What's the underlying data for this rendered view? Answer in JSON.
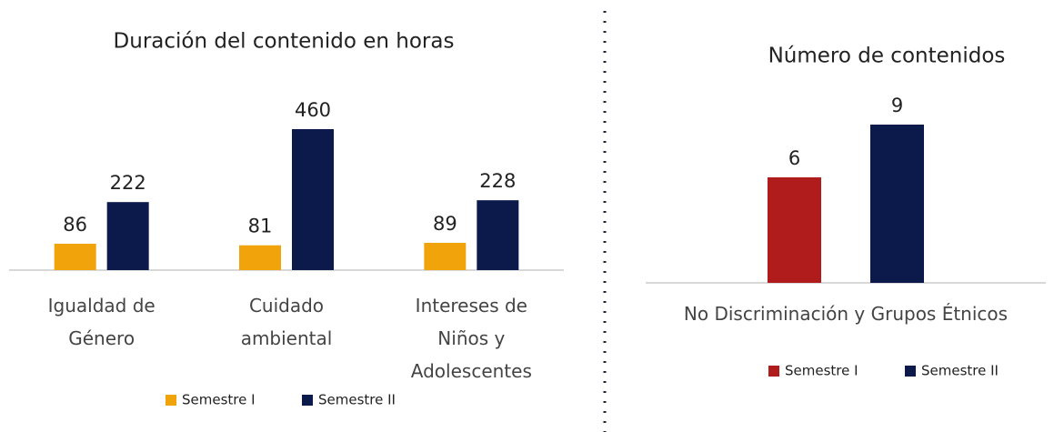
{
  "chart_data": [
    {
      "type": "bar",
      "title": "Duración del contenido en horas",
      "categories": [
        "Igualdad de Género",
        "Cuidado ambiental",
        "Intereses de Niños y Adolescentes"
      ],
      "series": [
        {
          "name": "Semestre I",
          "color": "#f0a30a",
          "values": [
            86,
            81,
            89
          ]
        },
        {
          "name": "Semestre II",
          "color": "#0b1a4a",
          "values": [
            222,
            460,
            228
          ]
        }
      ]
    },
    {
      "type": "bar",
      "title": "Número de contenidos",
      "categories": [
        "No Discriminación y Grupos Étnicos"
      ],
      "series": [
        {
          "name": "Semestre I",
          "color": "#b01c1c",
          "values": [
            6
          ]
        },
        {
          "name": "Semestre II",
          "color": "#0b1a4a",
          "values": [
            9
          ]
        }
      ]
    }
  ]
}
